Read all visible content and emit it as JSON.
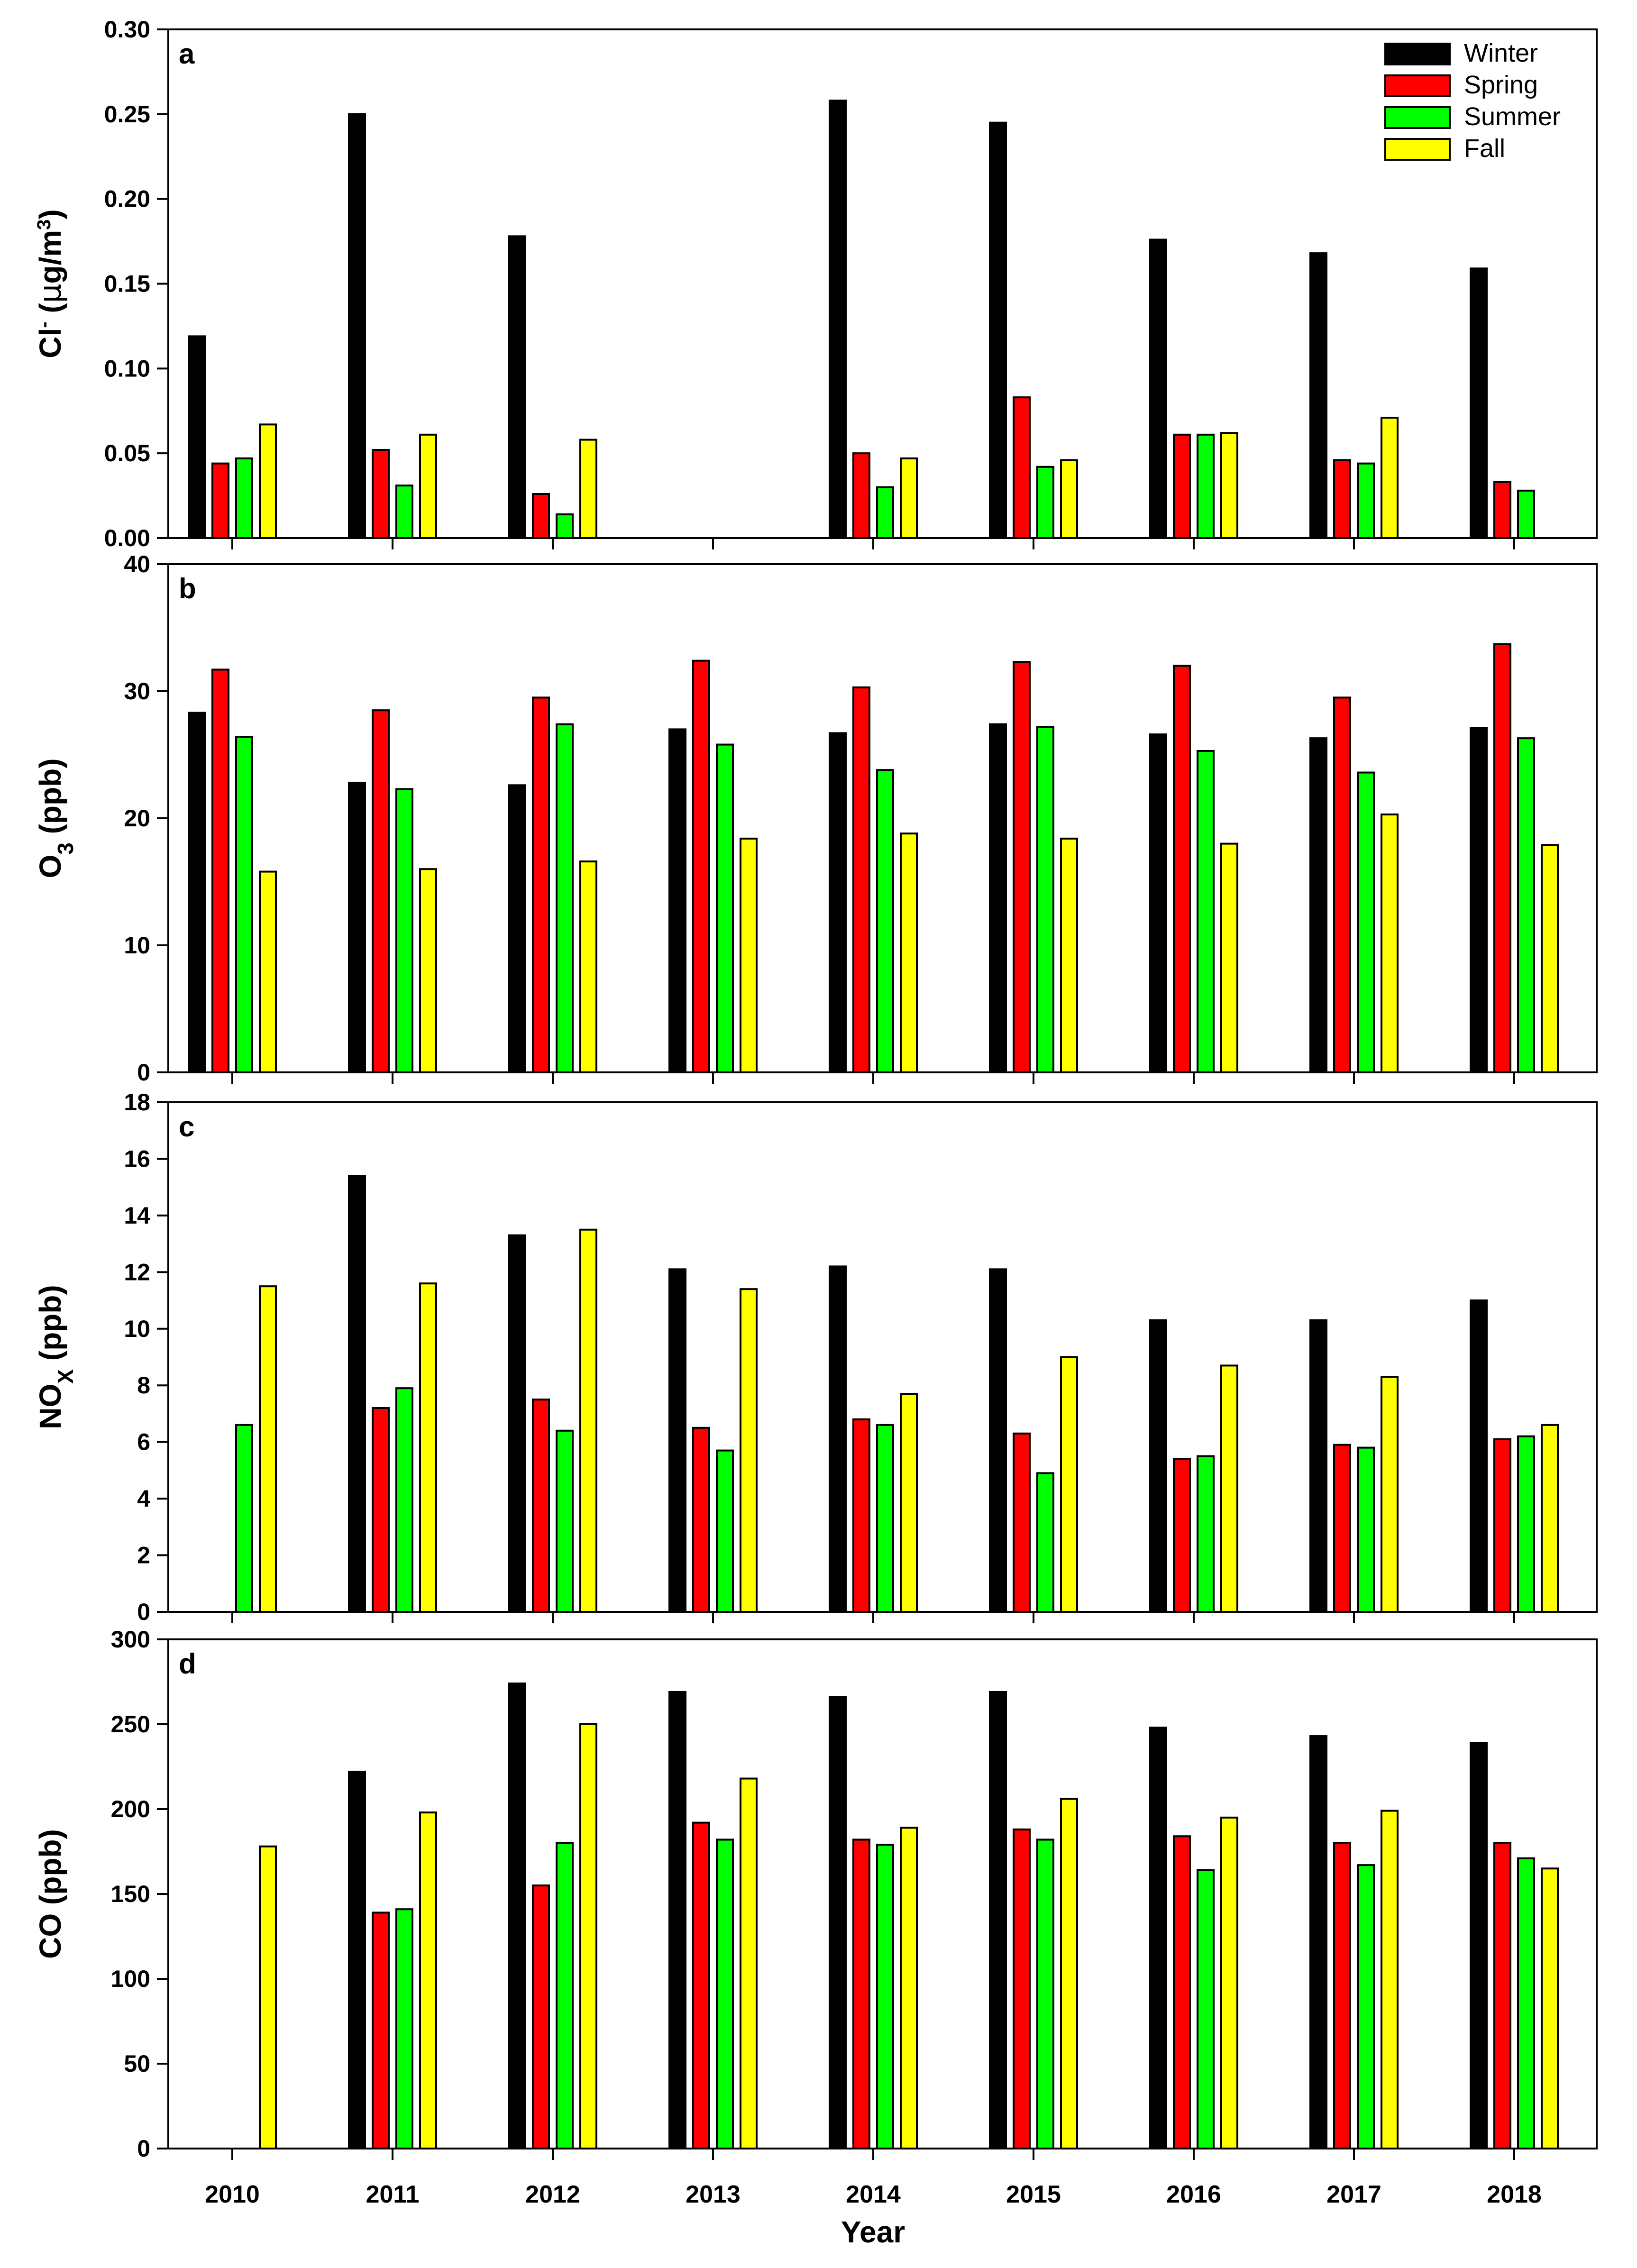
{
  "chart_data": [
    {
      "type": "bar",
      "panel_label": "a",
      "ylabel": "Cl- (µg/m3)",
      "ylabel_parts": {
        "main": "Cl",
        "sup": "-",
        "unit_open": " (",
        "mu": "µ",
        "unit_mid": "g/m",
        "unit_sup": "3",
        "unit_close": ")"
      },
      "ylim": [
        0,
        0.3
      ],
      "yticks": [
        "0.00",
        "0.05",
        "0.10",
        "0.15",
        "0.20",
        "0.25",
        "0.30"
      ],
      "categories": [
        "2010",
        "2011",
        "2012",
        "2013",
        "2014",
        "2015",
        "2016",
        "2017",
        "2018"
      ],
      "series": [
        {
          "name": "Winter",
          "values": [
            0.119,
            0.25,
            0.178,
            null,
            0.258,
            0.245,
            0.176,
            0.168,
            0.159
          ]
        },
        {
          "name": "Spring",
          "values": [
            0.044,
            0.052,
            0.026,
            null,
            0.05,
            0.083,
            0.061,
            0.046,
            0.033
          ]
        },
        {
          "name": "Summer",
          "values": [
            0.047,
            0.031,
            0.014,
            null,
            0.03,
            0.042,
            0.061,
            0.044,
            0.028
          ]
        },
        {
          "name": "Fall",
          "values": [
            0.067,
            0.061,
            0.058,
            null,
            0.047,
            0.046,
            0.062,
            0.071,
            null
          ]
        }
      ],
      "legend": "top-right"
    },
    {
      "type": "bar",
      "panel_label": "b",
      "ylabel": "O3 (ppb)",
      "ylabel_parts": {
        "main": "O",
        "sub": "3",
        "unit": " (ppb)"
      },
      "ylim": [
        0,
        40
      ],
      "yticks": [
        "0",
        "10",
        "20",
        "30",
        "40"
      ],
      "categories": [
        "2010",
        "2011",
        "2012",
        "2013",
        "2014",
        "2015",
        "2016",
        "2017",
        "2018"
      ],
      "series": [
        {
          "name": "Winter",
          "values": [
            28.3,
            22.8,
            22.6,
            27.0,
            26.7,
            27.4,
            26.6,
            26.3,
            27.1
          ]
        },
        {
          "name": "Spring",
          "values": [
            31.7,
            28.5,
            29.5,
            32.4,
            30.3,
            32.3,
            32.0,
            29.5,
            33.7
          ]
        },
        {
          "name": "Summer",
          "values": [
            26.4,
            22.3,
            27.4,
            25.8,
            23.8,
            27.2,
            25.3,
            23.6,
            26.3
          ]
        },
        {
          "name": "Fall",
          "values": [
            15.8,
            16.0,
            16.6,
            18.4,
            18.8,
            18.4,
            18.0,
            20.3,
            17.9
          ]
        }
      ]
    },
    {
      "type": "bar",
      "panel_label": "c",
      "ylabel": "NOx (ppb)",
      "ylabel_parts": {
        "main": "NO",
        "sub": "X",
        "unit": " (ppb)"
      },
      "ylim": [
        0,
        18
      ],
      "yticks": [
        "0",
        "2",
        "4",
        "6",
        "8",
        "10",
        "12",
        "14",
        "16",
        "18"
      ],
      "categories": [
        "2010",
        "2011",
        "2012",
        "2013",
        "2014",
        "2015",
        "2016",
        "2017",
        "2018"
      ],
      "series": [
        {
          "name": "Winter",
          "values": [
            null,
            15.4,
            13.3,
            12.1,
            12.2,
            12.1,
            10.3,
            10.3,
            11.0
          ]
        },
        {
          "name": "Spring",
          "values": [
            null,
            7.2,
            7.5,
            6.5,
            6.8,
            6.3,
            5.4,
            5.9,
            6.1
          ]
        },
        {
          "name": "Summer",
          "values": [
            6.6,
            7.9,
            6.4,
            5.7,
            6.6,
            4.9,
            5.5,
            5.8,
            6.2
          ]
        },
        {
          "name": "Fall",
          "values": [
            11.5,
            11.6,
            13.5,
            11.4,
            7.7,
            9.0,
            8.7,
            8.3,
            6.6
          ]
        }
      ]
    },
    {
      "type": "bar",
      "panel_label": "d",
      "ylabel": "CO (ppb)",
      "ylabel_parts": {
        "main": "CO (ppb)"
      },
      "xlabel": "Year",
      "ylim": [
        0,
        300
      ],
      "yticks": [
        "0",
        "50",
        "100",
        "150",
        "200",
        "250",
        "300"
      ],
      "categories": [
        "2010",
        "2011",
        "2012",
        "2013",
        "2014",
        "2015",
        "2016",
        "2017",
        "2018"
      ],
      "series": [
        {
          "name": "Winter",
          "values": [
            null,
            222,
            274,
            269,
            266,
            269,
            248,
            243,
            239
          ]
        },
        {
          "name": "Spring",
          "values": [
            null,
            139,
            155,
            192,
            182,
            188,
            184,
            180,
            180
          ]
        },
        {
          "name": "Summer",
          "values": [
            null,
            141,
            180,
            182,
            179,
            182,
            164,
            167,
            171
          ]
        },
        {
          "name": "Fall",
          "values": [
            178,
            198,
            250,
            218,
            189,
            206,
            195,
            199,
            165
          ]
        }
      ]
    }
  ],
  "legend": {
    "entries": [
      "Winter",
      "Spring",
      "Summer",
      "Fall"
    ]
  },
  "colors": {
    "Winter": "#000000",
    "Spring": "#ff0000",
    "Summer": "#00ff00",
    "Fall": "#ffff00"
  }
}
